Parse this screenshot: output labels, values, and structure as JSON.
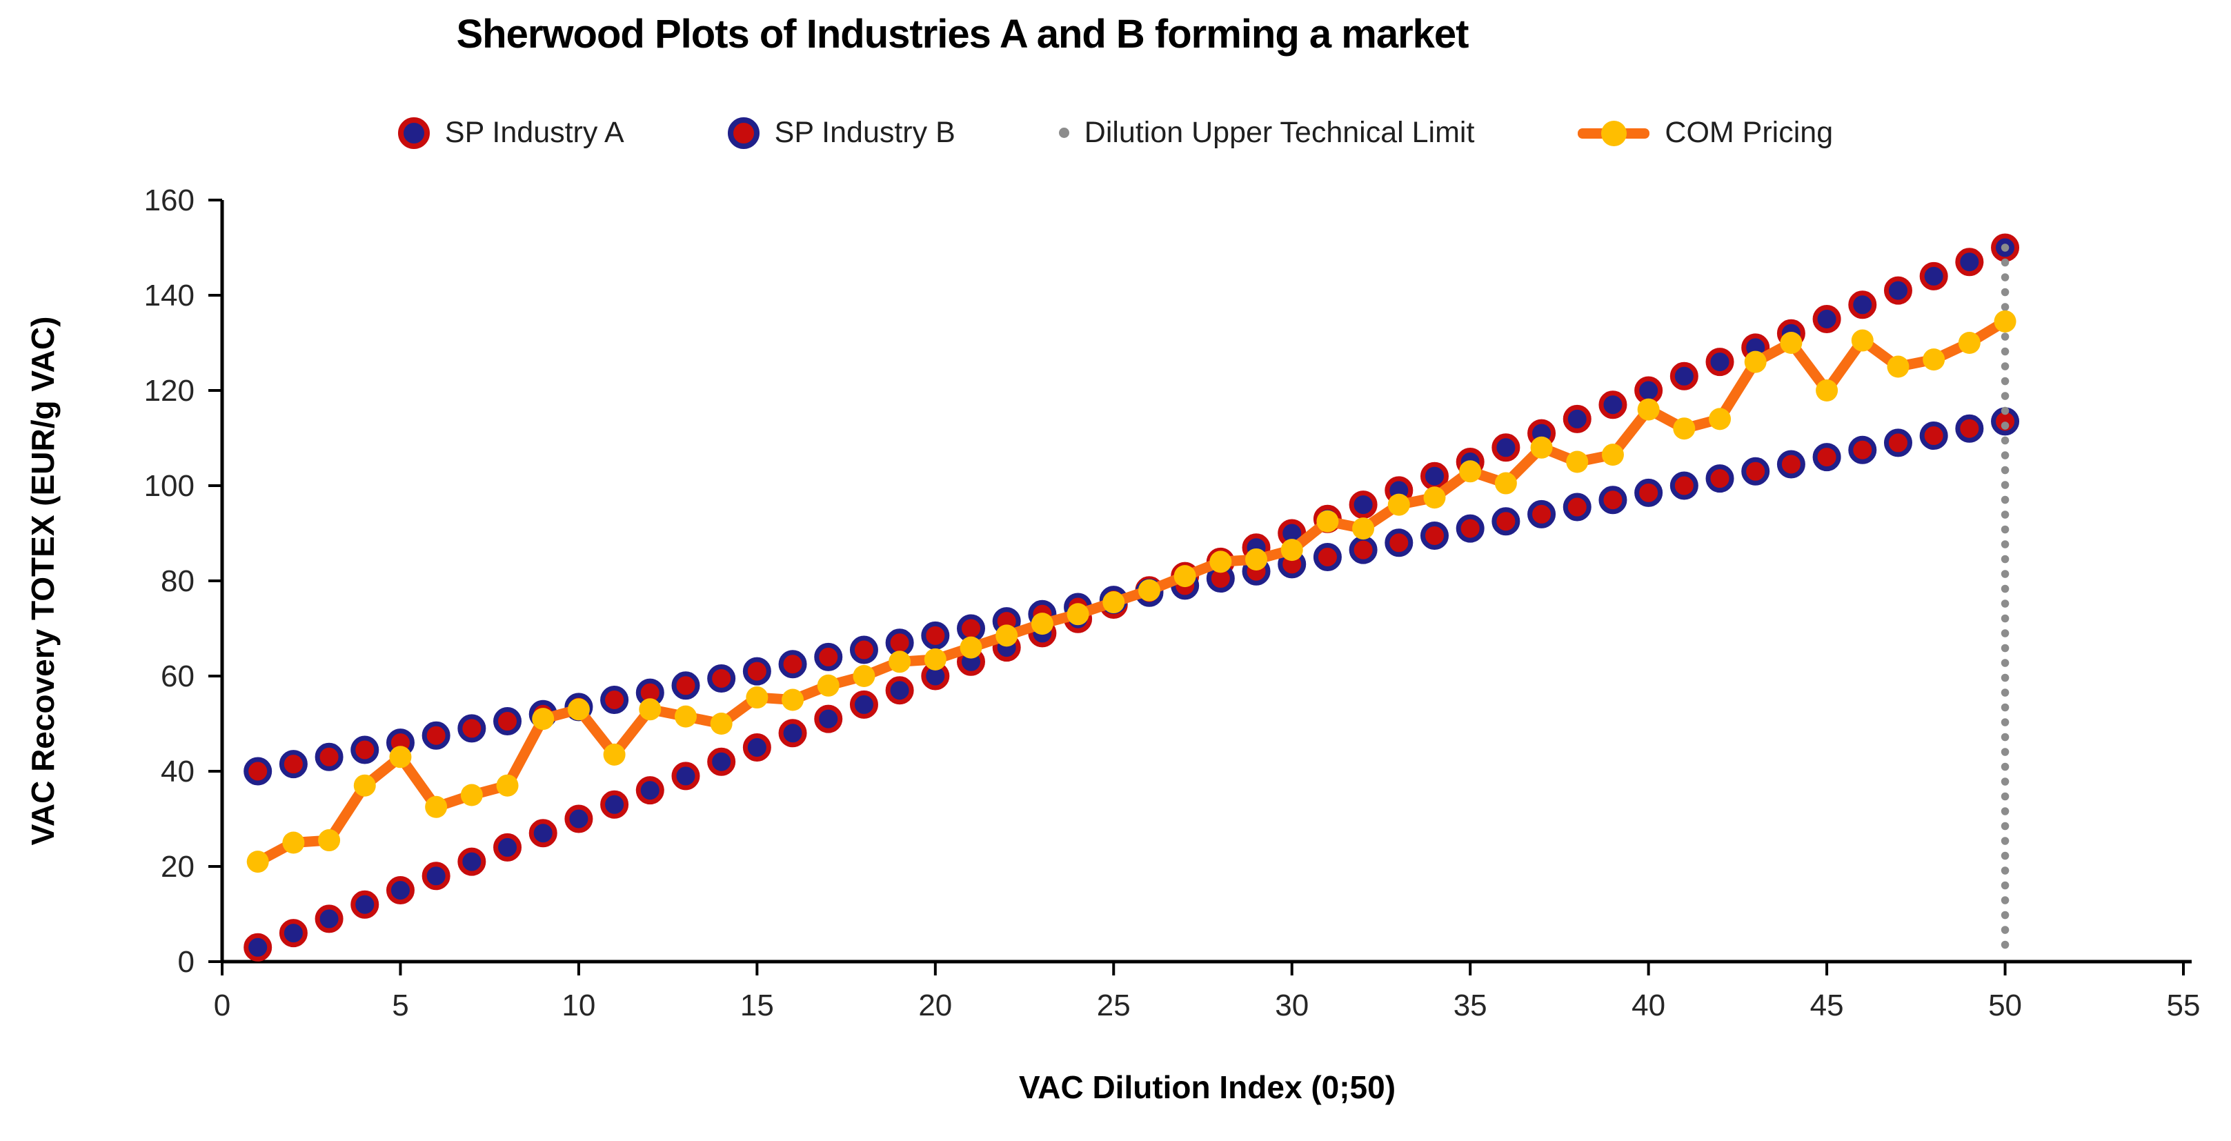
{
  "title": "Sherwood Plots of Industries A and B forming a market",
  "colors": {
    "navy": "#20208A",
    "red": "#C80C0C",
    "orange": "#F96E12",
    "yellow": "#FFBE00",
    "gray_dot": "#8C8C8C",
    "axis": "#000000",
    "tick_text": "#262626"
  },
  "legend": {
    "items": [
      {
        "label": "SP Industry A"
      },
      {
        "label": "SP Industry B"
      },
      {
        "label": "Dilution Upper Technical Limit"
      },
      {
        "label": "COM Pricing"
      }
    ]
  },
  "chart_data": {
    "type": "scatter",
    "title": "Sherwood Plots of Industries A and B forming a market",
    "xlabel": "VAC Dilution Index (0;50)",
    "ylabel": "VAC Recovery TOTEX (EUR/g VAC)",
    "xlim": [
      0,
      55
    ],
    "ylim": [
      0,
      160
    ],
    "x_ticks": [
      0,
      5,
      10,
      15,
      20,
      25,
      30,
      35,
      40,
      45,
      50,
      55
    ],
    "y_ticks": [
      0,
      20,
      40,
      60,
      80,
      100,
      120,
      140,
      160
    ],
    "grid": false,
    "legend_position": "top",
    "x": [
      1,
      2,
      3,
      4,
      5,
      6,
      7,
      8,
      9,
      10,
      11,
      12,
      13,
      14,
      15,
      16,
      17,
      18,
      19,
      20,
      21,
      22,
      23,
      24,
      25,
      26,
      27,
      28,
      29,
      30,
      31,
      32,
      33,
      34,
      35,
      36,
      37,
      38,
      39,
      40,
      41,
      42,
      43,
      44,
      45,
      46,
      47,
      48,
      49,
      50
    ],
    "series": [
      {
        "name": "SP Industry A",
        "style": "markers-only",
        "values": [
          3,
          6,
          9,
          12,
          15,
          18,
          21,
          24,
          27,
          30,
          33,
          36,
          39,
          42,
          45,
          48,
          51,
          54,
          57,
          60,
          63,
          66,
          69,
          72,
          75,
          78,
          81,
          84,
          87,
          90,
          93,
          96,
          99,
          102,
          105,
          108,
          111,
          114,
          117,
          120,
          123,
          126,
          129,
          132,
          135,
          138,
          141,
          144,
          147,
          150
        ]
      },
      {
        "name": "SP Industry B",
        "style": "markers-only",
        "values": [
          40,
          41.5,
          43,
          44.5,
          46,
          47.5,
          49,
          50.5,
          52,
          53.5,
          55,
          56.5,
          58,
          59.5,
          61,
          62.5,
          64,
          65.5,
          67,
          68.5,
          70,
          71.5,
          73,
          74.5,
          76,
          77.5,
          79,
          80.5,
          82,
          83.5,
          85,
          86.5,
          88,
          89.5,
          91,
          92.5,
          94,
          95.5,
          97,
          98.5,
          100,
          101.5,
          103,
          104.5,
          106,
          107.5,
          109,
          110.5,
          112,
          113.5
        ]
      },
      {
        "name": "Dilution Upper Technical Limit",
        "style": "vertical-dotted-line",
        "x_position": 50,
        "y_from": 0,
        "y_to": 150
      },
      {
        "name": "COM Pricing",
        "style": "line-with-markers",
        "values": [
          21,
          25,
          25.5,
          37,
          43,
          32.5,
          35,
          37,
          51,
          53,
          43.5,
          53,
          51.5,
          50,
          55.5,
          55,
          58,
          60,
          63,
          63.5,
          66,
          68.5,
          71,
          73,
          75.5,
          78,
          81,
          84,
          84.5,
          86.5,
          92.5,
          91,
          96,
          97.5,
          103,
          100.5,
          108,
          105,
          106.5,
          116,
          112,
          114,
          126,
          130,
          120,
          130.5,
          125,
          126.5,
          130,
          134.5
        ]
      }
    ]
  }
}
